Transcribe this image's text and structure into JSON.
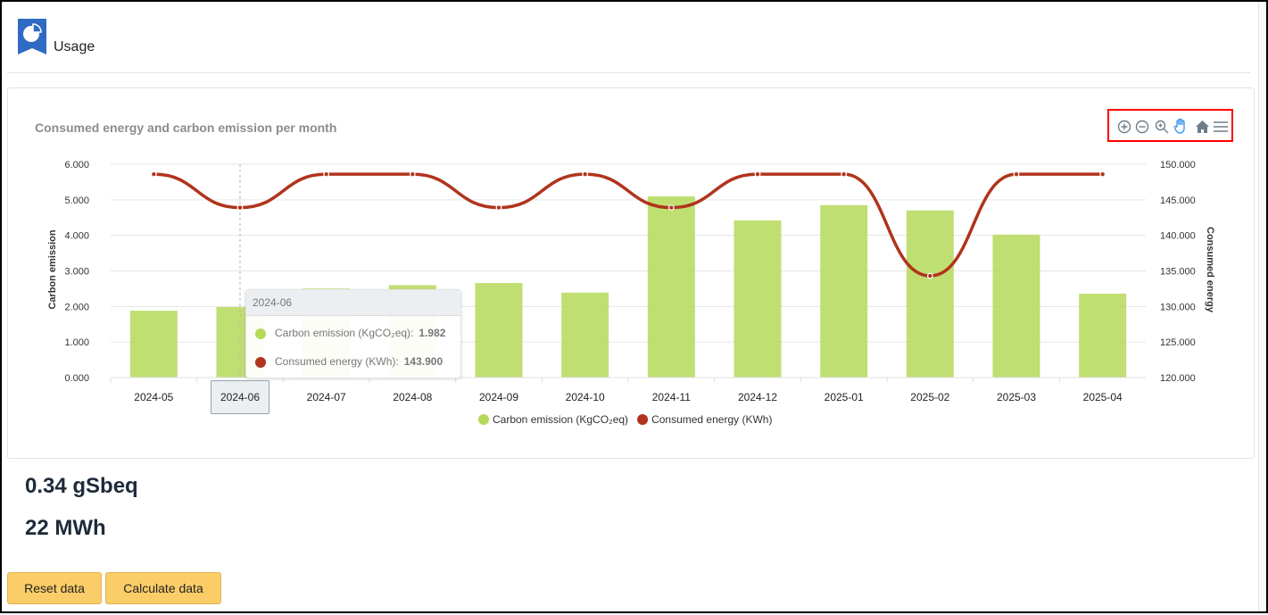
{
  "header": {
    "title": "Usage",
    "icon": "pie-chart-bookmark-icon"
  },
  "toolbar": {
    "icons": [
      "zoom-in-icon",
      "zoom-out-icon",
      "selection-zoom-icon",
      "pan-hand-icon",
      "home-reset-icon",
      "menu-icon"
    ]
  },
  "chart_data": {
    "type": "bar+line",
    "title": "Consumed energy and carbon emission per month",
    "categories": [
      "2024-05",
      "2024-06",
      "2024-07",
      "2024-08",
      "2024-09",
      "2024-10",
      "2024-11",
      "2024-12",
      "2025-01",
      "2025-02",
      "2025-03",
      "2025-04"
    ],
    "series": [
      {
        "name": "Carbon emission (KgCO₂eq)",
        "type": "bar",
        "axis": "left",
        "color": "#b5d95a",
        "values": [
          1.88,
          1.982,
          2.5,
          2.6,
          2.66,
          2.39,
          5.1,
          4.42,
          4.85,
          4.7,
          4.02,
          2.36
        ]
      },
      {
        "name": "Consumed energy (KWh)",
        "type": "line",
        "axis": "right",
        "color": "#b0341c",
        "values": [
          148.6,
          143.9,
          148.6,
          148.6,
          143.9,
          148.6,
          143.9,
          148.6,
          148.6,
          134.3,
          148.6,
          148.6
        ]
      }
    ],
    "ylabel_left": "Carbon emission",
    "ylabel_right": "Consumed energy",
    "ylim_left": [
      0,
      6
    ],
    "ylim_right": [
      120,
      150
    ],
    "yticks_left": [
      "0.000",
      "1.000",
      "2.000",
      "3.000",
      "4.000",
      "5.000",
      "6.000"
    ],
    "yticks_right": [
      "120.000",
      "125.000",
      "130.000",
      "135.000",
      "140.000",
      "145.000",
      "150.000"
    ],
    "legend": [
      "Carbon emission (KgCO₂eq)",
      "Consumed energy (KWh)"
    ],
    "legend_position": "bottom",
    "grid": true
  },
  "tooltip": {
    "category": "2024-06",
    "rows": [
      {
        "label": "Carbon emission (KgCO₂eq):",
        "value": "1.982",
        "color": "#b5d95a"
      },
      {
        "label": "Consumed energy (KWh):",
        "value": "143.900",
        "color": "#b0341c"
      }
    ]
  },
  "stats": {
    "emission": "0.34 gSbeq",
    "energy": "22 MWh"
  },
  "buttons": {
    "reset": "Reset data",
    "calculate": "Calculate data"
  }
}
